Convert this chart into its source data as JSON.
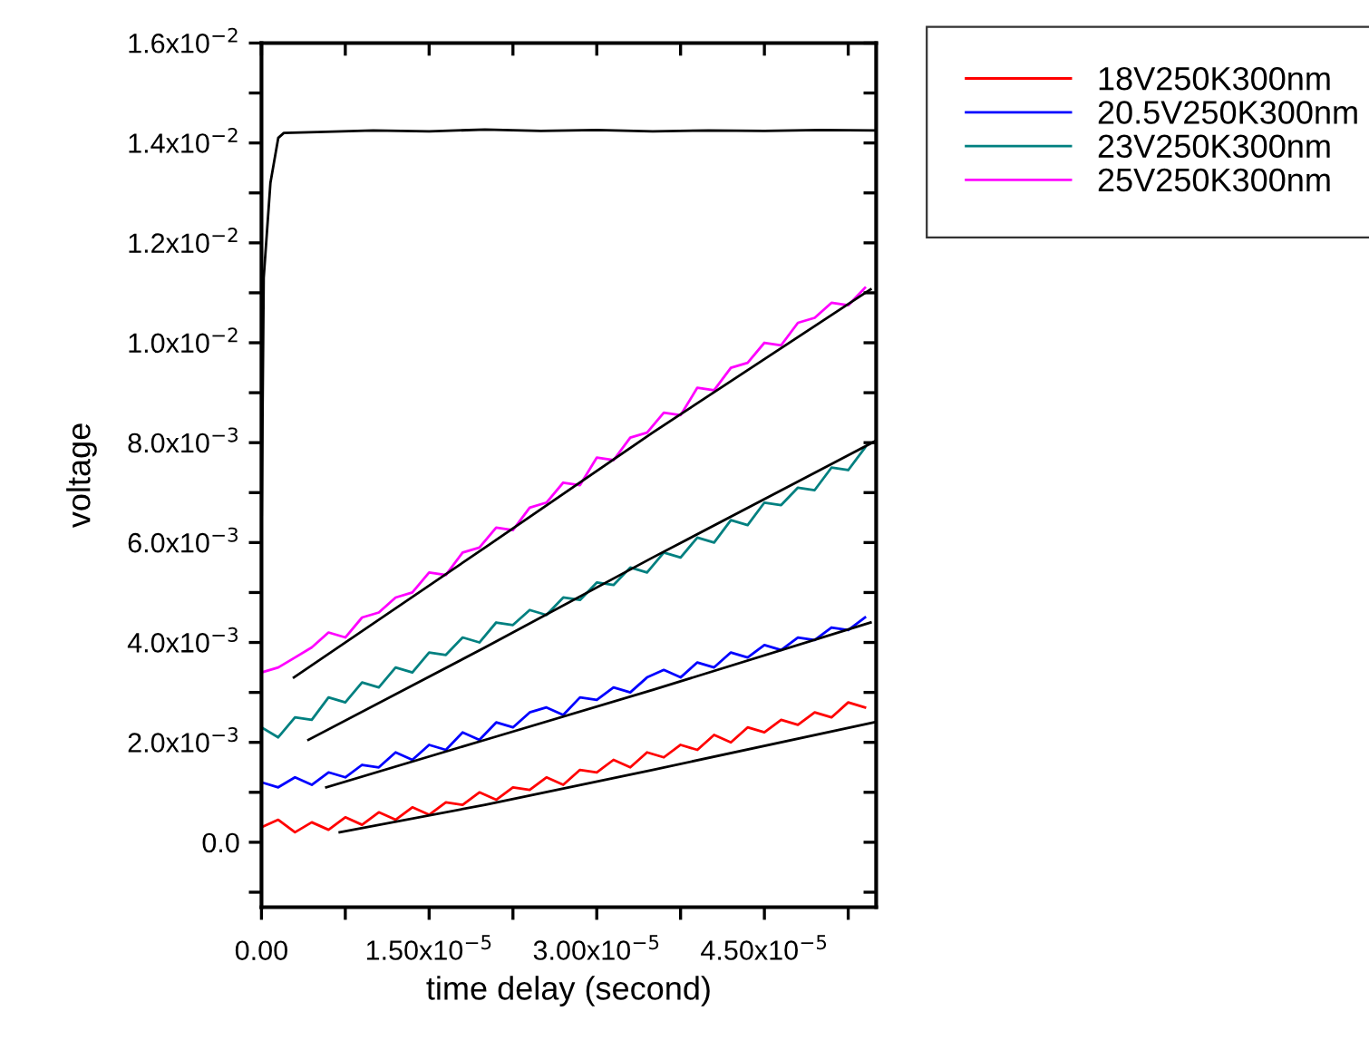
{
  "chart_data": {
    "type": "line",
    "xlabel": "time delay (second)",
    "ylabel": "voltage",
    "x": [
      0,
      1.5e-06,
      3e-06,
      4.5e-06,
      6e-06,
      7.5e-06,
      9e-06,
      1.05e-05,
      1.2e-05,
      1.35e-05,
      1.5e-05,
      1.65e-05,
      1.8e-05,
      1.95e-05,
      2.1e-05,
      2.25e-05,
      2.4e-05,
      2.55e-05,
      2.7e-05,
      2.85e-05,
      3e-05,
      3.15e-05,
      3.3e-05,
      3.45e-05,
      3.6e-05,
      3.75e-05,
      3.9e-05,
      4.05e-05,
      4.2e-05,
      4.35e-05,
      4.5e-05,
      4.65e-05,
      4.8e-05,
      4.95e-05,
      5.1e-05,
      5.25e-05,
      5.4e-05
    ],
    "series": [
      {
        "color": "#000000",
        "x": [
          0,
          2e-07,
          8e-07,
          1.5e-06,
          2e-06,
          5e-06,
          1e-05,
          1.5e-05,
          2e-05,
          2.5e-05,
          3e-05,
          3.5e-05,
          4e-05,
          4.5e-05,
          5e-05,
          5.5e-05
        ],
        "values": [
          0.006,
          0.0113,
          0.0132,
          0.0141,
          0.0142,
          0.01422,
          0.01425,
          0.01423,
          0.01427,
          0.01424,
          0.01426,
          0.01423,
          0.01425,
          0.01424,
          0.01426,
          0.01425
        ]
      },
      {
        "name": "18V250K300nm",
        "color": "#ff0000",
        "values": [
          0.0003,
          0.00045,
          0.0002,
          0.0004,
          0.00025,
          0.0005,
          0.00035,
          0.0006,
          0.00045,
          0.0007,
          0.00055,
          0.0008,
          0.00075,
          0.001,
          0.00085,
          0.0011,
          0.00105,
          0.0013,
          0.00115,
          0.00145,
          0.0014,
          0.00165,
          0.0015,
          0.0018,
          0.0017,
          0.00195,
          0.00185,
          0.00215,
          0.002,
          0.0023,
          0.0022,
          0.00245,
          0.00235,
          0.0026,
          0.0025,
          0.0028,
          0.0027
        ]
      },
      {
        "name": "20.5V250K300nm",
        "color": "#0000ff",
        "values": [
          0.0012,
          0.0011,
          0.0013,
          0.00115,
          0.0014,
          0.0013,
          0.00155,
          0.0015,
          0.0018,
          0.00165,
          0.00195,
          0.00185,
          0.0022,
          0.00205,
          0.0024,
          0.0023,
          0.0026,
          0.0027,
          0.00255,
          0.0029,
          0.00285,
          0.0031,
          0.003,
          0.0033,
          0.00345,
          0.0033,
          0.0036,
          0.0035,
          0.0038,
          0.0037,
          0.00395,
          0.00385,
          0.0041,
          0.00405,
          0.0043,
          0.00425,
          0.0045
        ]
      },
      {
        "name": "23V250K300nm",
        "color": "#008080",
        "values": [
          0.0023,
          0.0021,
          0.0025,
          0.00245,
          0.0029,
          0.0028,
          0.0032,
          0.0031,
          0.0035,
          0.0034,
          0.0038,
          0.00375,
          0.0041,
          0.004,
          0.0044,
          0.00435,
          0.00465,
          0.00455,
          0.0049,
          0.00485,
          0.0052,
          0.00515,
          0.0055,
          0.0054,
          0.0058,
          0.0057,
          0.0061,
          0.006,
          0.00645,
          0.00635,
          0.0068,
          0.00675,
          0.0071,
          0.00705,
          0.0075,
          0.00745,
          0.0079
        ]
      },
      {
        "name": "25V250K300nm",
        "color": "#ff00ff",
        "values": [
          0.0034,
          0.0035,
          0.0037,
          0.0039,
          0.0042,
          0.0041,
          0.0045,
          0.0046,
          0.0049,
          0.005,
          0.0054,
          0.00535,
          0.0058,
          0.0059,
          0.0063,
          0.00625,
          0.0067,
          0.0068,
          0.0072,
          0.00715,
          0.0077,
          0.00765,
          0.0081,
          0.0082,
          0.0086,
          0.00855,
          0.0091,
          0.00905,
          0.0095,
          0.0096,
          0.01,
          0.00995,
          0.0104,
          0.0105,
          0.0108,
          0.01075,
          0.0111
        ]
      },
      {
        "color": "#000000",
        "x": [
          7e-06,
          2e-05,
          3.5e-05,
          5.48e-05
        ],
        "values": [
          0.0002,
          0.00075,
          0.00145,
          0.0024
        ]
      },
      {
        "color": "#000000",
        "x": [
          5.8e-06,
          2e-05,
          3.5e-05,
          5.45e-05
        ],
        "values": [
          0.0011,
          0.00205,
          0.00305,
          0.0044
        ]
      },
      {
        "color": "#000000",
        "x": [
          4.2e-06,
          2e-05,
          3.5e-05,
          5.5e-05
        ],
        "values": [
          0.00205,
          0.0039,
          0.0057,
          0.00804
        ]
      },
      {
        "color": "#000000",
        "x": [
          2.9e-06,
          2e-05,
          3.5e-05,
          5.45e-05
        ],
        "values": [
          0.0033,
          0.0059,
          0.0082,
          0.01107
        ]
      }
    ],
    "xlim": [
      0,
      5.5e-05
    ],
    "xticks": [
      {
        "value": 0,
        "label": "0.00"
      },
      {
        "value": 7.5e-06,
        "label": null
      },
      {
        "value": 1.5e-05,
        "label": "1.50x10$^{−5}$"
      },
      {
        "value": 2.25e-05,
        "label": null
      },
      {
        "value": 3e-05,
        "label": "3.00x10$^{−5}$"
      },
      {
        "value": 3.75e-05,
        "label": null
      },
      {
        "value": 4.5e-05,
        "label": "4.50x10$^{−5}$"
      },
      {
        "value": 5.25e-05,
        "label": null
      }
    ],
    "ylim": [
      -0.0013,
      0.016
    ],
    "yticks": [
      {
        "value": -0.001,
        "label": null
      },
      {
        "value": 0,
        "label": "0.0"
      },
      {
        "value": 0.001,
        "label": null
      },
      {
        "value": 0.002,
        "label": "2.0x10$^{−3}$"
      },
      {
        "value": 0.003,
        "label": null
      },
      {
        "value": 0.004,
        "label": "4.0x10$^{−3}$"
      },
      {
        "value": 0.005,
        "label": null
      },
      {
        "value": 0.006,
        "label": "6.0x10$^{−3}$"
      },
      {
        "value": 0.007,
        "label": null
      },
      {
        "value": 0.008,
        "label": "8.0x10$^{−3}$"
      },
      {
        "value": 0.009,
        "label": null
      },
      {
        "value": 0.01,
        "label": "1.0x10$^{−2}$"
      },
      {
        "value": 0.011,
        "label": null
      },
      {
        "value": 0.012,
        "label": "1.2x10$^{−2}$"
      },
      {
        "value": 0.013,
        "label": null
      },
      {
        "value": 0.014,
        "label": "1.4x10$^{−2}$"
      },
      {
        "value": 0.015,
        "label": null
      },
      {
        "value": 0.016,
        "label": "1.6x10$^{−2}$"
      }
    ],
    "grid": false,
    "legend": "top right",
    "line_style": "solid",
    "marker": "none"
  }
}
